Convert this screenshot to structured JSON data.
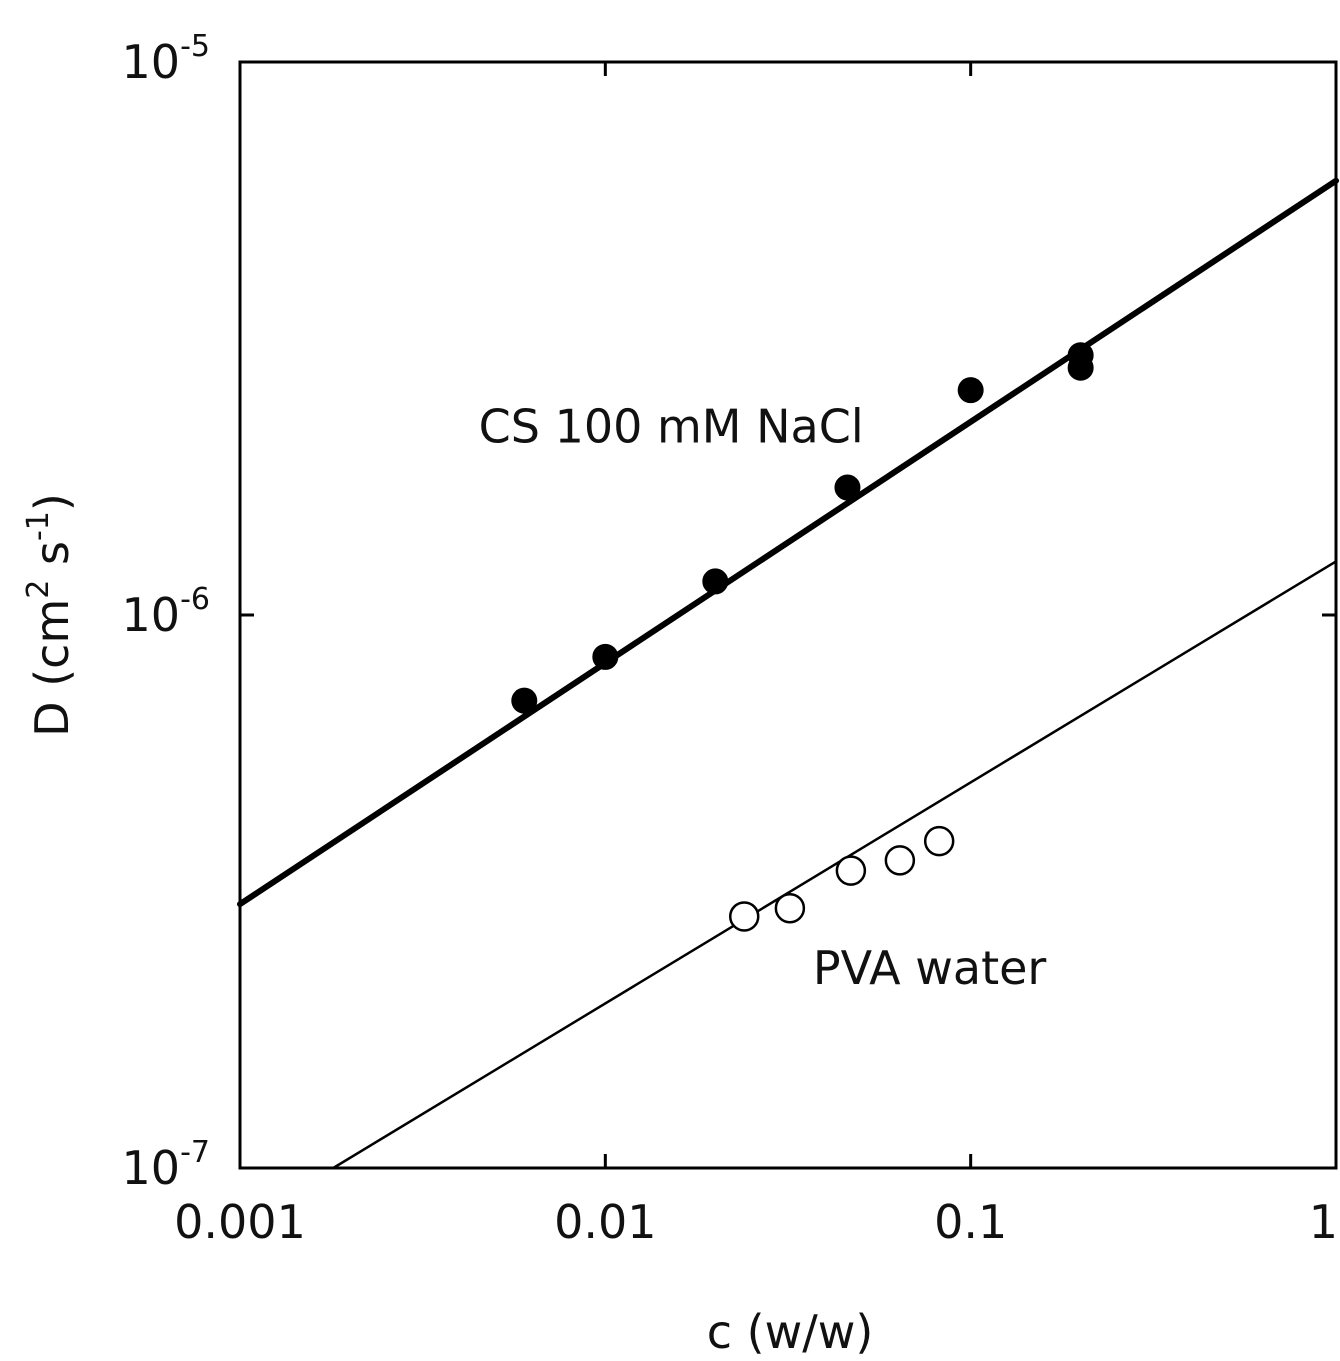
{
  "chart_data": {
    "type": "scatter",
    "xlabel": "c (w/w)",
    "ylabel": {
      "base": "D (cm",
      "sup1": "2",
      "mid": " s",
      "sup2": "-1",
      "end": ")"
    },
    "xscale": "log",
    "yscale": "log",
    "xlim": [
      0.001,
      1
    ],
    "ylim": [
      1e-07,
      1e-05
    ],
    "xticks": [
      {
        "value": 0.001,
        "label": "0.001"
      },
      {
        "value": 0.01,
        "label": "0.01"
      },
      {
        "value": 0.1,
        "label": "0.1"
      },
      {
        "value": 1,
        "label": "1"
      }
    ],
    "yticks": [
      {
        "value": 1e-07,
        "base": "10",
        "exp": "-7"
      },
      {
        "value": 1e-06,
        "base": "10",
        "exp": "-6"
      },
      {
        "value": 1e-05,
        "base": "10",
        "exp": "-5"
      }
    ],
    "grid": false,
    "series": [
      {
        "name": "CS 100 mM NaCl",
        "marker": "filled-circle",
        "color": "#000000",
        "fit_line": {
          "x": [
            0.001,
            1
          ],
          "y": [
            3e-07,
            6.1e-06
          ],
          "weight": "thick"
        },
        "points": [
          {
            "x": 0.006,
            "y": 7e-07
          },
          {
            "x": 0.01,
            "y": 8.4e-07
          },
          {
            "x": 0.02,
            "y": 1.15e-06
          },
          {
            "x": 0.046,
            "y": 1.7e-06
          },
          {
            "x": 0.1,
            "y": 2.55e-06
          },
          {
            "x": 0.2,
            "y": 2.95e-06
          },
          {
            "x": 0.2,
            "y": 2.8e-06
          }
        ],
        "label_position": {
          "x": 0.0045,
          "y": 2.05e-06
        }
      },
      {
        "name": "PVA water",
        "marker": "open-circle",
        "color": "#000000",
        "fit_line": {
          "x": [
            0.0018,
            1
          ],
          "y": [
            1e-07,
            1.25e-06
          ],
          "weight": "thin"
        },
        "points": [
          {
            "x": 0.024,
            "y": 2.85e-07
          },
          {
            "x": 0.032,
            "y": 2.95e-07
          },
          {
            "x": 0.047,
            "y": 3.45e-07
          },
          {
            "x": 0.064,
            "y": 3.6e-07
          },
          {
            "x": 0.082,
            "y": 3.9e-07
          }
        ],
        "label_position": {
          "x": 0.037,
          "y": 2.15e-07
        }
      }
    ]
  }
}
